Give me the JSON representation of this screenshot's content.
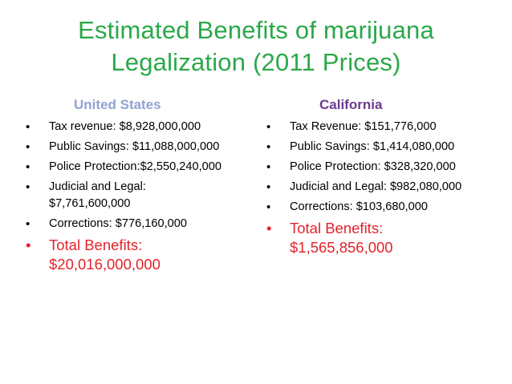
{
  "title": {
    "line1": "Estimated Benefits of marijuana",
    "line2": "Legalization (2011 Prices)"
  },
  "colors": {
    "title": "#2aa84a",
    "us_heading": "#8ea4d2",
    "ca_heading": "#6b3c8e",
    "total": "#e3232b"
  },
  "us": {
    "heading": "United States",
    "items": [
      {
        "line1": "Tax revenue: $8,928,000,000"
      },
      {
        "line1": "Public Savings: $11,088,000,000"
      },
      {
        "line1": "Police Protection:$2,550,240,000"
      },
      {
        "line1": "Judicial and Legal:",
        "line2": "$7,761,600,000"
      },
      {
        "line1": "Corrections: $776,160,000"
      }
    ],
    "total": {
      "line1": "Total Benefits:",
      "line2": "$20,016,000,000"
    }
  },
  "ca": {
    "heading": "California",
    "items": [
      {
        "line1": "Tax Revenue: $151,776,000"
      },
      {
        "line1": "Public Savings: $1,414,080,000"
      },
      {
        "line1": "Police Protection: $328,320,000"
      },
      {
        "line1": "Judicial and Legal: $982,080,000"
      },
      {
        "line1": "Corrections: $103,680,000"
      }
    ],
    "total": {
      "line1": "Total Benefits:",
      "line2": "$1,565,856,000"
    }
  },
  "bullet": "•"
}
